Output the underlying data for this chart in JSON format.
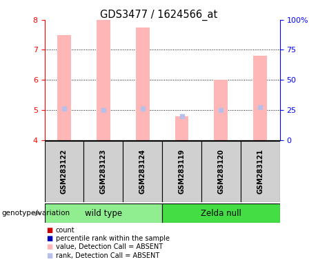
{
  "title": "GDS3477 / 1624566_at",
  "samples": [
    "GSM283122",
    "GSM283123",
    "GSM283124",
    "GSM283119",
    "GSM283120",
    "GSM283121"
  ],
  "group_names": [
    "wild type",
    "Zelda null"
  ],
  "group_colors": [
    "#90ee90",
    "#44dd44"
  ],
  "group_wt_indices": [
    0,
    1,
    2
  ],
  "group_zn_indices": [
    3,
    4,
    5
  ],
  "bar_values": [
    7.5,
    8.0,
    7.75,
    4.8,
    6.0,
    6.8
  ],
  "rank_values_pct": [
    26,
    25,
    26,
    20,
    25,
    27
  ],
  "ylim_left": [
    4,
    8
  ],
  "ylim_right": [
    0,
    100
  ],
  "yticks_left": [
    4,
    5,
    6,
    7,
    8
  ],
  "yticks_right": [
    0,
    25,
    50,
    75,
    100
  ],
  "bar_color_absent": "#ffb6b6",
  "rank_color_absent": "#b8bfe8",
  "bar_width": 0.35,
  "genotype_label": "genotype/variation",
  "sample_box_color": "#d0d0d0",
  "legend_items": [
    {
      "label": "count",
      "color": "#cc0000"
    },
    {
      "label": "percentile rank within the sample",
      "color": "#0000bb"
    },
    {
      "label": "value, Detection Call = ABSENT",
      "color": "#ffb6b6"
    },
    {
      "label": "rank, Detection Call = ABSENT",
      "color": "#b8bfe8"
    }
  ]
}
